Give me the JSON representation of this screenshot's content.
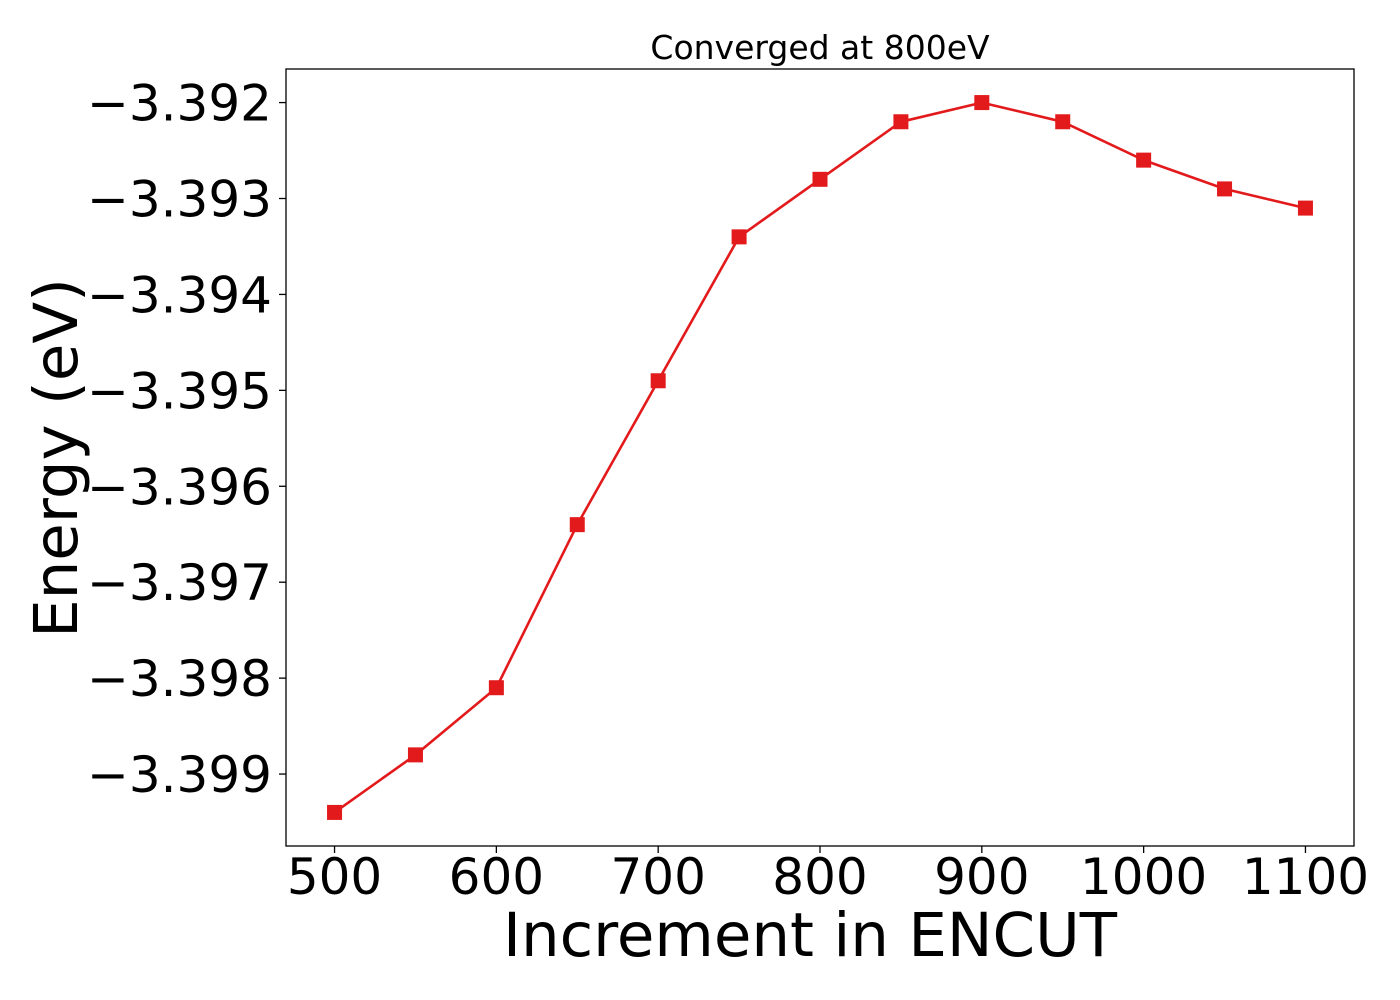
{
  "chart_data": {
    "type": "line",
    "title": "Converged at 800eV",
    "xlabel": "Increment in ENCUT",
    "ylabel": "Energy (eV)",
    "x": [
      500,
      550,
      600,
      650,
      700,
      750,
      800,
      850,
      900,
      950,
      1000,
      1050,
      1100
    ],
    "series": [
      {
        "values": [
          -3.3994,
          -3.3988,
          -3.3981,
          -3.3964,
          -3.3949,
          -3.3934,
          -3.3928,
          -3.3922,
          -3.392,
          -3.3922,
          -3.3926,
          -3.3929,
          -3.3931
        ],
        "color": "#e31a1c",
        "marker": "square"
      }
    ],
    "xlim": [
      470,
      1130
    ],
    "ylim": [
      -3.39975,
      -3.39165
    ],
    "xticks": [
      500,
      600,
      700,
      800,
      900,
      1000,
      1100
    ],
    "xtick_labels": [
      "500",
      "600",
      "700",
      "800",
      "900",
      "1000",
      "1100"
    ],
    "yticks": [
      -3.392,
      -3.393,
      -3.394,
      -3.395,
      -3.396,
      -3.397,
      -3.398,
      -3.399
    ],
    "ytick_labels": [
      "−3.392",
      "−3.393",
      "−3.394",
      "−3.395",
      "−3.396",
      "−3.397",
      "−3.398",
      "−3.399"
    ],
    "grid": false,
    "legend": "none"
  }
}
